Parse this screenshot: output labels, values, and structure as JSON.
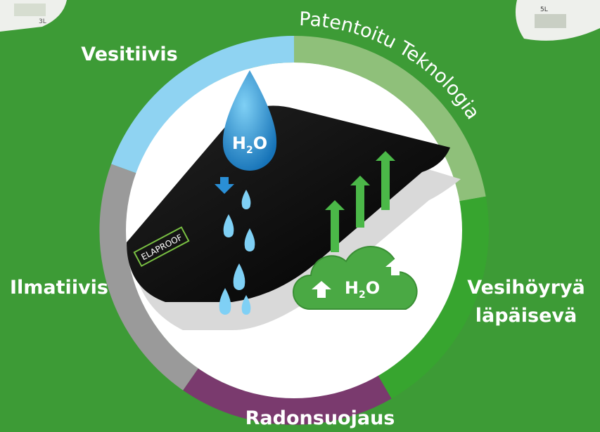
{
  "ring_title": "Patentoitu Teknologia",
  "features": {
    "top_left": "Vesitiivis",
    "left": "Ilmatiivis",
    "right": [
      "Vesihöyryä",
      "läpäisevä"
    ],
    "bottom": "Radonsuojaus"
  },
  "drop_label": [
    "H",
    "2",
    "O"
  ],
  "cloud_label": [
    "H",
    "2",
    "O"
  ],
  "brand": "ELAPROOF",
  "products": {
    "left": "3L",
    "right": "5L"
  }
}
